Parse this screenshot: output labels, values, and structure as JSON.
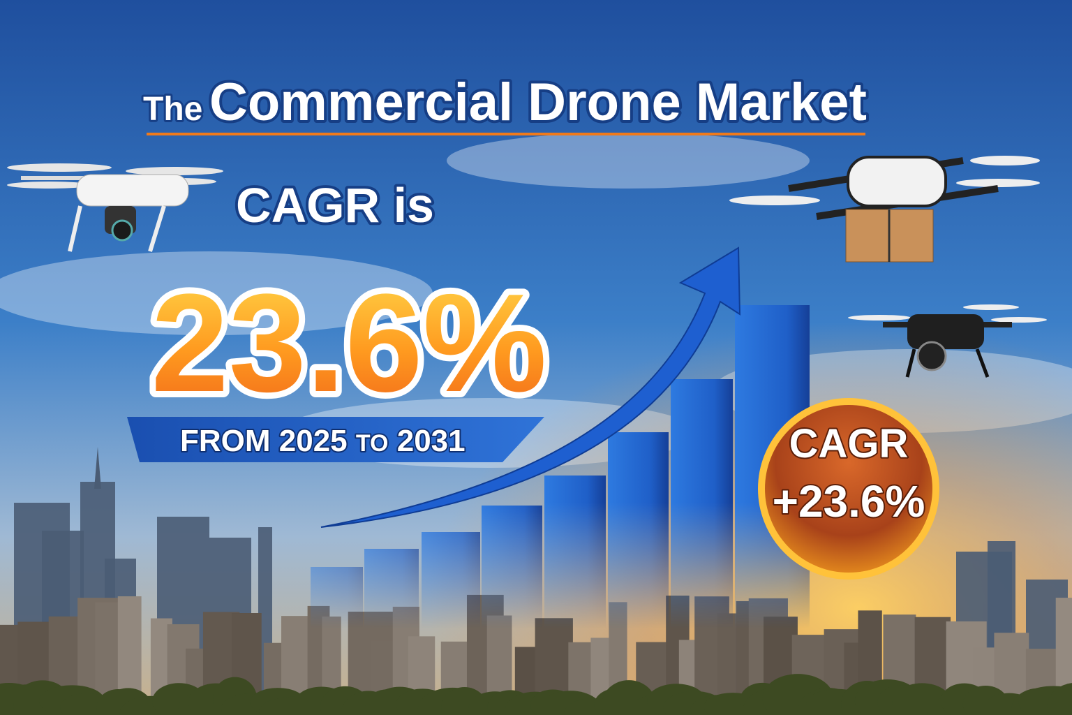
{
  "header": {
    "prefix": "The",
    "title": "Commercial Drone Market"
  },
  "headline": {
    "lead": "CAGR is",
    "value": "23.6%"
  },
  "banner": {
    "from": "FROM 2025",
    "to": "TO",
    "end": "2031"
  },
  "badge": {
    "label": "CAGR",
    "value": "+23.6%"
  }
}
